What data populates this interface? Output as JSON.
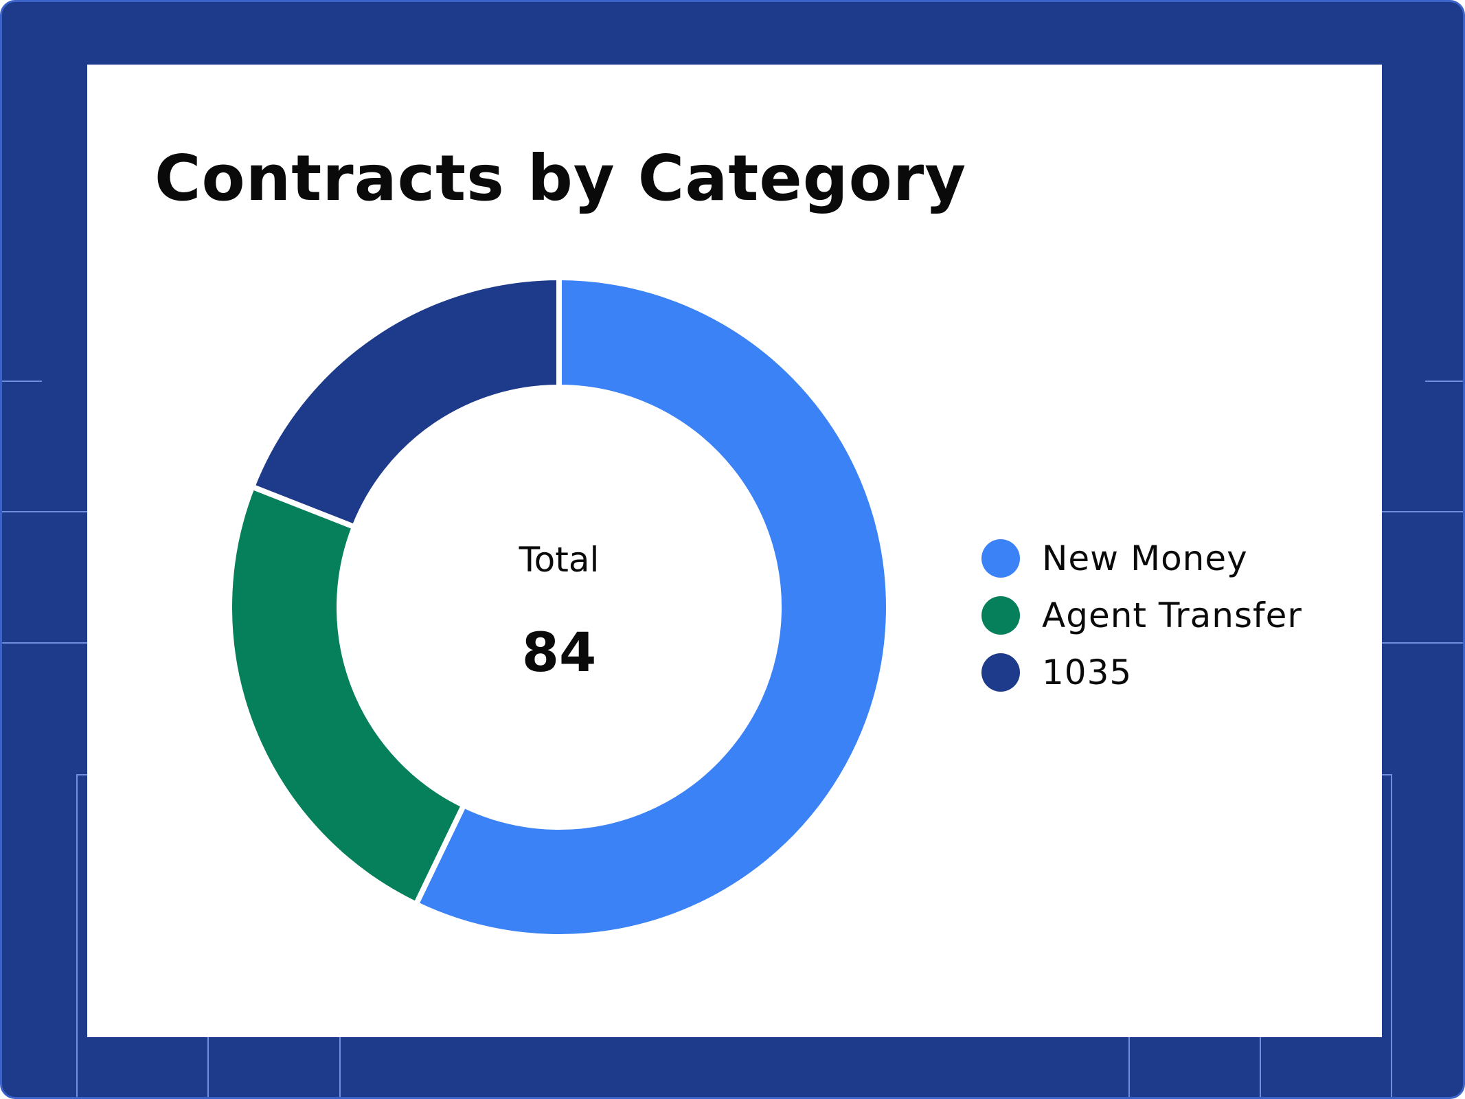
{
  "colors": {
    "frame": "#1e3a8a",
    "new_money": "#3b82f6",
    "agent_transfer": "#05805a",
    "n1035": "#1e3a8a"
  },
  "chart_data": {
    "type": "pie",
    "variant": "donut",
    "title": "Contracts by Category",
    "center": {
      "label": "Total",
      "value": "84"
    },
    "legend_position": "right",
    "categories": [
      "New Money",
      "Agent Transfer",
      "1035"
    ],
    "values": [
      48,
      20,
      16
    ],
    "colors": [
      "#3b82f6",
      "#05805a",
      "#1e3a8a"
    ]
  }
}
